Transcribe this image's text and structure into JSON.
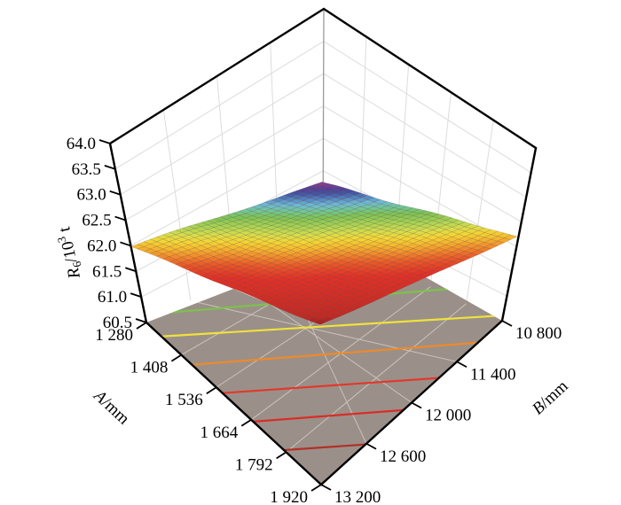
{
  "figure": {
    "background": "#ffffff"
  },
  "chart_data": {
    "type": "surface",
    "z_axis": {
      "title_parts": [
        {
          "t": "R",
          "style": "italic"
        },
        {
          "t": "6",
          "script": "sub"
        },
        {
          "t": "/10"
        },
        {
          "t": "3",
          "script": "sup"
        },
        {
          "t": " t"
        }
      ],
      "min": 60.5,
      "max": 64.0,
      "tick_step": 0.5,
      "tick_labels": [
        "60.5",
        "61.0",
        "61.5",
        "62.0",
        "62.5",
        "63.0",
        "63.5",
        "64.0"
      ]
    },
    "a_axis": {
      "title_parts": [
        {
          "t": "A",
          "style": "italic"
        },
        {
          "t": "/mm"
        }
      ],
      "min": 1280,
      "max": 1920,
      "tick_step": 128,
      "tick_labels": [
        "1 280",
        "1 408",
        "1 536",
        "1 664",
        "1 792",
        "1 920"
      ]
    },
    "b_axis": {
      "title_parts": [
        {
          "t": "B",
          "style": "italic"
        },
        {
          "t": "/mm"
        }
      ],
      "min": 10800,
      "max": 13200,
      "tick_step": 600,
      "tick_labels": [
        "10 800",
        "11 400",
        "12 000",
        "12 600",
        "13 200"
      ]
    },
    "surface_corner_values": {
      "A1280_B10800": 62.9,
      "A1920_B10800": 62.1,
      "A1280_B13200": 62.1,
      "A1920_B13200": 61.3
    },
    "colormap": [
      [
        0.0,
        "#8f2322"
      ],
      [
        0.05,
        "#c02a24"
      ],
      [
        0.3,
        "#e13127"
      ],
      [
        0.38,
        "#e85829"
      ],
      [
        0.44,
        "#f08a2c"
      ],
      [
        0.5,
        "#f4ba30"
      ],
      [
        0.55,
        "#f3d736"
      ],
      [
        0.6,
        "#d5dd4e"
      ],
      [
        0.66,
        "#a6d355"
      ],
      [
        0.72,
        "#7fc354"
      ],
      [
        0.77,
        "#72c795"
      ],
      [
        0.82,
        "#6fb9d6"
      ],
      [
        0.87,
        "#5381bd"
      ],
      [
        0.91,
        "#4355a3"
      ],
      [
        0.95,
        "#533f96"
      ],
      [
        1.0,
        "#8f3f8f"
      ]
    ],
    "contours": [
      {
        "z": 62.4,
        "color": "#7cc24a"
      },
      {
        "z": 62.2,
        "color": "#f0e13c"
      },
      {
        "z": 62.0,
        "color": "#ee8a2a"
      },
      {
        "z": 61.8,
        "color": "#e2382b"
      },
      {
        "z": 61.6,
        "color": "#d92d26"
      },
      {
        "z": 61.4,
        "color": "#b23028"
      }
    ],
    "floor_color": "#9a9089",
    "floor_grid_color": "#cac3bc",
    "wall_color": "#ffffff",
    "wall_grid_color": "#dcdcdc",
    "corner_line_color": "#9a9a9a",
    "edge_color": "#000000"
  }
}
